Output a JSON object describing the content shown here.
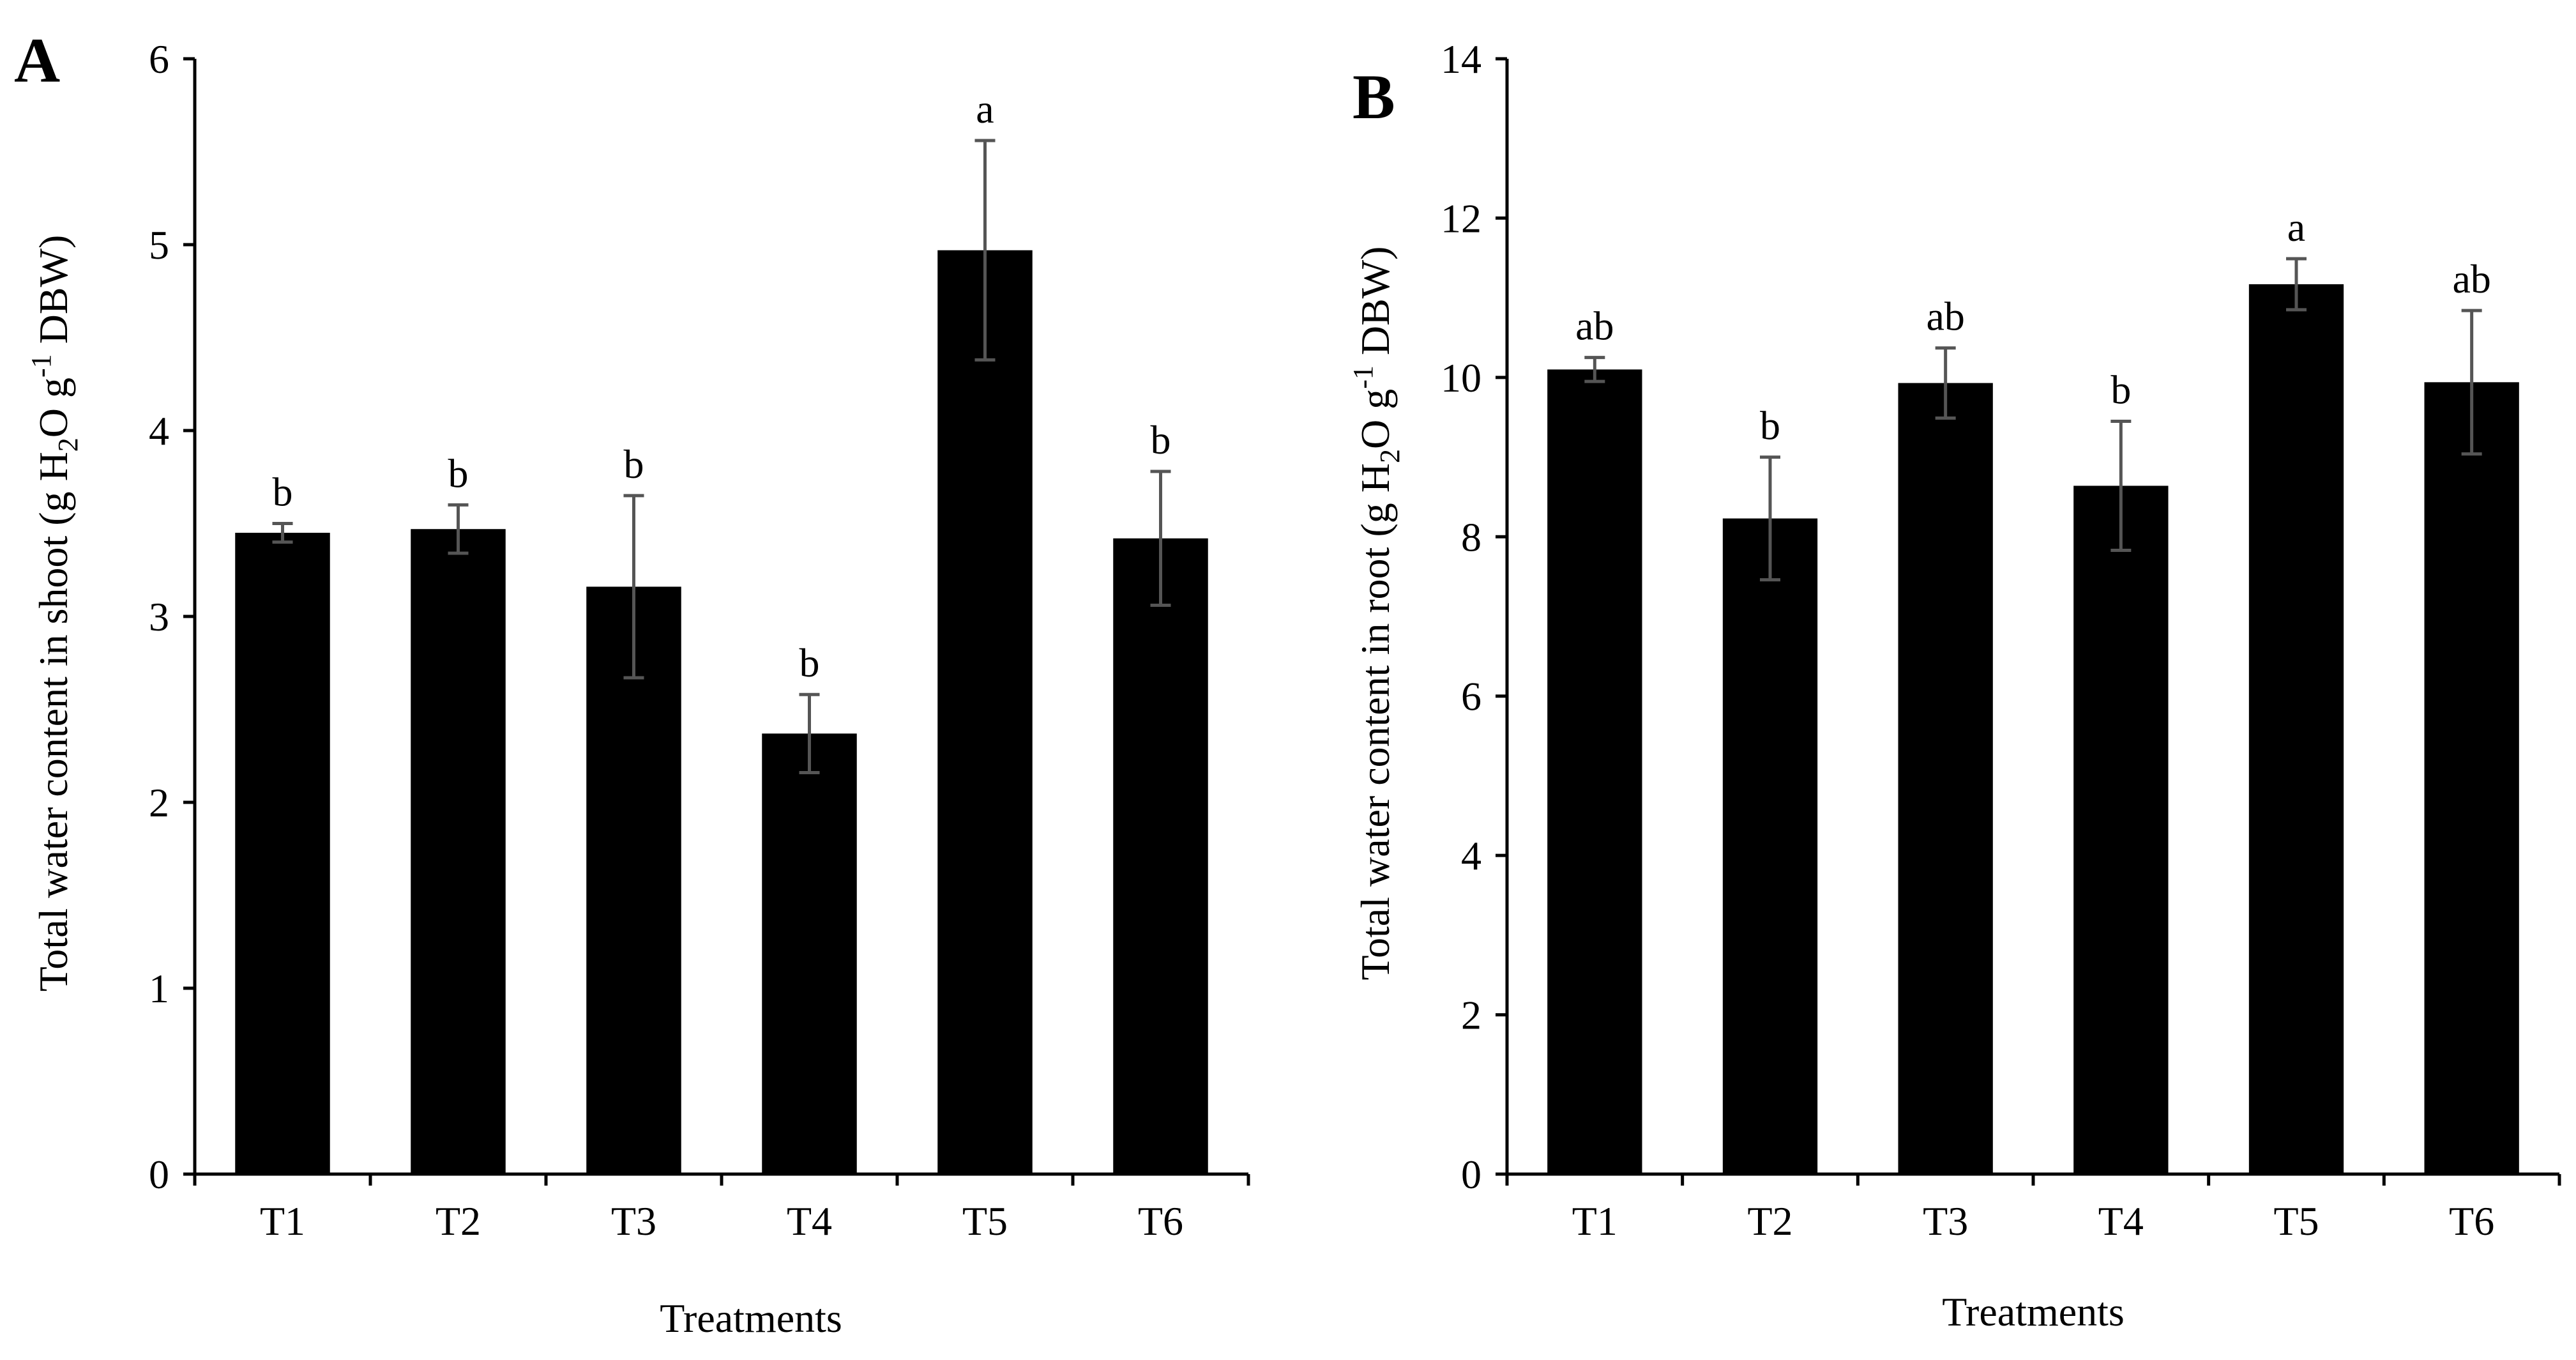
{
  "chart_data": [
    {
      "panel_label": "A",
      "type": "bar",
      "categories": [
        "T1",
        "T2",
        "T3",
        "T4",
        "T5",
        "T6"
      ],
      "values": [
        3.45,
        3.47,
        3.16,
        2.37,
        4.97,
        3.42
      ],
      "error": [
        0.05,
        0.13,
        0.49,
        0.21,
        0.59,
        0.36
      ],
      "significance": [
        "b",
        "b",
        "b",
        "b",
        "a",
        "b"
      ],
      "xlabel": "Treatments",
      "ylabel": {
        "pre": "Total water content in shoot  (g H",
        "sub": "2",
        "mid": "O g",
        "sup": "-1",
        "post": " DBW)"
      },
      "ylim": [
        0,
        6
      ],
      "yticks": [
        0,
        1,
        2,
        3,
        4,
        5,
        6
      ],
      "bar_color": "#000000",
      "error_color": "#555555"
    },
    {
      "panel_label": "B",
      "type": "bar",
      "categories": [
        "T1",
        "T2",
        "T3",
        "T4",
        "T5",
        "T6"
      ],
      "values": [
        10.1,
        8.23,
        9.93,
        8.64,
        11.17,
        9.94
      ],
      "error": [
        0.15,
        0.77,
        0.44,
        0.81,
        0.32,
        0.9
      ],
      "significance": [
        "ab",
        "b",
        "ab",
        "b",
        "a",
        "ab"
      ],
      "xlabel": "Treatments",
      "ylabel": {
        "pre": "Total water content in root (g H",
        "sub": "2",
        "mid": "O g",
        "sup": "-1",
        "post": " DBW)"
      },
      "ylim": [
        0,
        14
      ],
      "yticks": [
        0,
        2,
        4,
        6,
        8,
        10,
        12,
        14
      ],
      "bar_color": "#000000",
      "error_color": "#555555"
    }
  ]
}
